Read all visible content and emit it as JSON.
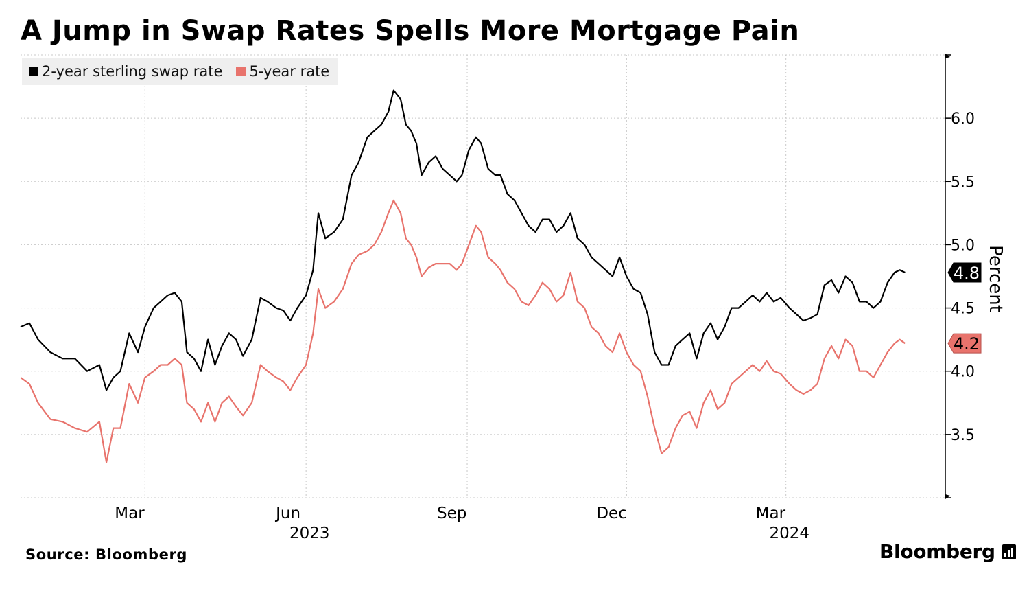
{
  "title": "A Jump in Swap Rates Spells More Mortgage Pain",
  "legend": [
    {
      "label": "2-year sterling swap rate",
      "color": "#000000"
    },
    {
      "label": "5-year rate",
      "color": "#e8736c"
    }
  ],
  "source": "Source: Bloomberg",
  "brand": "Bloomberg",
  "chart_data": {
    "type": "line",
    "ylabel": "Percent",
    "ylim": [
      3.0,
      6.5
    ],
    "yticks": [
      "3.5",
      "4.0",
      "4.5",
      "5.0",
      "5.5",
      "6.0"
    ],
    "xlim": [
      "2022-12-20",
      "2024-05-31"
    ],
    "xticks": [
      {
        "label": "Mar",
        "date": "2023-03-01"
      },
      {
        "label": "Jun",
        "date": "2023-06-01"
      },
      {
        "label": "Sep",
        "date": "2023-09-01"
      },
      {
        "label": "Dec",
        "date": "2023-12-01"
      },
      {
        "label": "Mar",
        "date": "2024-03-01"
      }
    ],
    "year_labels": [
      {
        "label": "2023",
        "date": "2023-06-03"
      },
      {
        "label": "2024",
        "date": "2024-03-03"
      }
    ],
    "grid": true,
    "legend_position": "top-left",
    "series": [
      {
        "name": "2-year sterling swap rate",
        "color": "#000000",
        "last_label": "4.8",
        "points": [
          [
            "2022-12-20",
            4.35
          ],
          [
            "2022-12-25",
            4.38
          ],
          [
            "2022-12-30",
            4.25
          ],
          [
            "2023-01-06",
            4.15
          ],
          [
            "2023-01-13",
            4.1
          ],
          [
            "2023-01-20",
            4.1
          ],
          [
            "2023-01-27",
            4.0
          ],
          [
            "2023-02-03",
            4.05
          ],
          [
            "2023-02-07",
            3.85
          ],
          [
            "2023-02-11",
            3.95
          ],
          [
            "2023-02-15",
            4.0
          ],
          [
            "2023-02-20",
            4.3
          ],
          [
            "2023-02-25",
            4.15
          ],
          [
            "2023-03-01",
            4.35
          ],
          [
            "2023-03-06",
            4.5
          ],
          [
            "2023-03-10",
            4.55
          ],
          [
            "2023-03-14",
            4.6
          ],
          [
            "2023-03-18",
            4.62
          ],
          [
            "2023-03-22",
            4.55
          ],
          [
            "2023-03-25",
            4.15
          ],
          [
            "2023-03-29",
            4.1
          ],
          [
            "2023-04-02",
            4.0
          ],
          [
            "2023-04-06",
            4.25
          ],
          [
            "2023-04-10",
            4.05
          ],
          [
            "2023-04-14",
            4.2
          ],
          [
            "2023-04-18",
            4.3
          ],
          [
            "2023-04-22",
            4.25
          ],
          [
            "2023-04-26",
            4.12
          ],
          [
            "2023-05-01",
            4.25
          ],
          [
            "2023-05-06",
            4.58
          ],
          [
            "2023-05-10",
            4.55
          ],
          [
            "2023-05-15",
            4.5
          ],
          [
            "2023-05-19",
            4.48
          ],
          [
            "2023-05-23",
            4.4
          ],
          [
            "2023-05-27",
            4.5
          ],
          [
            "2023-06-01",
            4.6
          ],
          [
            "2023-06-05",
            4.8
          ],
          [
            "2023-06-08",
            5.25
          ],
          [
            "2023-06-12",
            5.05
          ],
          [
            "2023-06-17",
            5.1
          ],
          [
            "2023-06-22",
            5.2
          ],
          [
            "2023-06-27",
            5.55
          ],
          [
            "2023-07-01",
            5.65
          ],
          [
            "2023-07-06",
            5.85
          ],
          [
            "2023-07-10",
            5.9
          ],
          [
            "2023-07-14",
            5.95
          ],
          [
            "2023-07-18",
            6.05
          ],
          [
            "2023-07-21",
            6.22
          ],
          [
            "2023-07-25",
            6.15
          ],
          [
            "2023-07-28",
            5.95
          ],
          [
            "2023-07-31",
            5.9
          ],
          [
            "2023-08-03",
            5.8
          ],
          [
            "2023-08-06",
            5.55
          ],
          [
            "2023-08-10",
            5.65
          ],
          [
            "2023-08-14",
            5.7
          ],
          [
            "2023-08-18",
            5.6
          ],
          [
            "2023-08-22",
            5.55
          ],
          [
            "2023-08-26",
            5.5
          ],
          [
            "2023-08-29",
            5.55
          ],
          [
            "2023-09-02",
            5.75
          ],
          [
            "2023-09-06",
            5.85
          ],
          [
            "2023-09-09",
            5.8
          ],
          [
            "2023-09-13",
            5.6
          ],
          [
            "2023-09-17",
            5.55
          ],
          [
            "2023-09-20",
            5.55
          ],
          [
            "2023-09-24",
            5.4
          ],
          [
            "2023-09-28",
            5.35
          ],
          [
            "2023-10-02",
            5.25
          ],
          [
            "2023-10-06",
            5.15
          ],
          [
            "2023-10-10",
            5.1
          ],
          [
            "2023-10-14",
            5.2
          ],
          [
            "2023-10-18",
            5.2
          ],
          [
            "2023-10-22",
            5.1
          ],
          [
            "2023-10-26",
            5.15
          ],
          [
            "2023-10-30",
            5.25
          ],
          [
            "2023-11-03",
            5.05
          ],
          [
            "2023-11-07",
            5.0
          ],
          [
            "2023-11-11",
            4.9
          ],
          [
            "2023-11-15",
            4.85
          ],
          [
            "2023-11-19",
            4.8
          ],
          [
            "2023-11-23",
            4.75
          ],
          [
            "2023-11-27",
            4.9
          ],
          [
            "2023-12-01",
            4.75
          ],
          [
            "2023-12-05",
            4.65
          ],
          [
            "2023-12-09",
            4.62
          ],
          [
            "2023-12-13",
            4.45
          ],
          [
            "2023-12-17",
            4.15
          ],
          [
            "2023-12-21",
            4.05
          ],
          [
            "2023-12-25",
            4.05
          ],
          [
            "2023-12-29",
            4.2
          ],
          [
            "2024-01-02",
            4.25
          ],
          [
            "2024-01-06",
            4.3
          ],
          [
            "2024-01-10",
            4.1
          ],
          [
            "2024-01-14",
            4.3
          ],
          [
            "2024-01-18",
            4.38
          ],
          [
            "2024-01-22",
            4.25
          ],
          [
            "2024-01-26",
            4.35
          ],
          [
            "2024-01-30",
            4.5
          ],
          [
            "2024-02-03",
            4.5
          ],
          [
            "2024-02-07",
            4.55
          ],
          [
            "2024-02-11",
            4.6
          ],
          [
            "2024-02-15",
            4.55
          ],
          [
            "2024-02-19",
            4.62
          ],
          [
            "2024-02-23",
            4.55
          ],
          [
            "2024-02-27",
            4.58
          ],
          [
            "2024-03-03",
            4.5
          ],
          [
            "2024-03-07",
            4.45
          ],
          [
            "2024-03-11",
            4.4
          ],
          [
            "2024-03-15",
            4.42
          ],
          [
            "2024-03-19",
            4.45
          ],
          [
            "2024-03-23",
            4.68
          ],
          [
            "2024-03-27",
            4.72
          ],
          [
            "2024-03-31",
            4.62
          ],
          [
            "2024-04-04",
            4.75
          ],
          [
            "2024-04-08",
            4.7
          ],
          [
            "2024-04-12",
            4.55
          ],
          [
            "2024-04-16",
            4.55
          ],
          [
            "2024-04-20",
            4.5
          ],
          [
            "2024-04-24",
            4.55
          ],
          [
            "2024-04-28",
            4.7
          ],
          [
            "2024-05-02",
            4.78
          ],
          [
            "2024-05-05",
            4.8
          ],
          [
            "2024-05-08",
            4.78
          ]
        ]
      },
      {
        "name": "5-year rate",
        "color": "#e8736c",
        "last_label": "4.2",
        "points": [
          [
            "2022-12-20",
            3.95
          ],
          [
            "2022-12-25",
            3.9
          ],
          [
            "2022-12-30",
            3.75
          ],
          [
            "2023-01-06",
            3.62
          ],
          [
            "2023-01-13",
            3.6
          ],
          [
            "2023-01-20",
            3.55
          ],
          [
            "2023-01-27",
            3.52
          ],
          [
            "2023-02-03",
            3.6
          ],
          [
            "2023-02-07",
            3.28
          ],
          [
            "2023-02-11",
            3.55
          ],
          [
            "2023-02-15",
            3.55
          ],
          [
            "2023-02-20",
            3.9
          ],
          [
            "2023-02-25",
            3.75
          ],
          [
            "2023-03-01",
            3.95
          ],
          [
            "2023-03-06",
            4.0
          ],
          [
            "2023-03-10",
            4.05
          ],
          [
            "2023-03-14",
            4.05
          ],
          [
            "2023-03-18",
            4.1
          ],
          [
            "2023-03-22",
            4.05
          ],
          [
            "2023-03-25",
            3.75
          ],
          [
            "2023-03-29",
            3.7
          ],
          [
            "2023-04-02",
            3.6
          ],
          [
            "2023-04-06",
            3.75
          ],
          [
            "2023-04-10",
            3.6
          ],
          [
            "2023-04-14",
            3.75
          ],
          [
            "2023-04-18",
            3.8
          ],
          [
            "2023-04-22",
            3.72
          ],
          [
            "2023-04-26",
            3.65
          ],
          [
            "2023-05-01",
            3.75
          ],
          [
            "2023-05-06",
            4.05
          ],
          [
            "2023-05-10",
            4.0
          ],
          [
            "2023-05-15",
            3.95
          ],
          [
            "2023-05-19",
            3.92
          ],
          [
            "2023-05-23",
            3.85
          ],
          [
            "2023-05-27",
            3.95
          ],
          [
            "2023-06-01",
            4.05
          ],
          [
            "2023-06-05",
            4.3
          ],
          [
            "2023-06-08",
            4.65
          ],
          [
            "2023-06-12",
            4.5
          ],
          [
            "2023-06-17",
            4.55
          ],
          [
            "2023-06-22",
            4.65
          ],
          [
            "2023-06-27",
            4.85
          ],
          [
            "2023-07-01",
            4.92
          ],
          [
            "2023-07-06",
            4.95
          ],
          [
            "2023-07-10",
            5.0
          ],
          [
            "2023-07-14",
            5.1
          ],
          [
            "2023-07-18",
            5.25
          ],
          [
            "2023-07-21",
            5.35
          ],
          [
            "2023-07-25",
            5.25
          ],
          [
            "2023-07-28",
            5.05
          ],
          [
            "2023-07-31",
            5.0
          ],
          [
            "2023-08-03",
            4.9
          ],
          [
            "2023-08-06",
            4.75
          ],
          [
            "2023-08-10",
            4.82
          ],
          [
            "2023-08-14",
            4.85
          ],
          [
            "2023-08-18",
            4.85
          ],
          [
            "2023-08-22",
            4.85
          ],
          [
            "2023-08-26",
            4.8
          ],
          [
            "2023-08-29",
            4.85
          ],
          [
            "2023-09-02",
            5.0
          ],
          [
            "2023-09-06",
            5.15
          ],
          [
            "2023-09-09",
            5.1
          ],
          [
            "2023-09-13",
            4.9
          ],
          [
            "2023-09-17",
            4.85
          ],
          [
            "2023-09-20",
            4.8
          ],
          [
            "2023-09-24",
            4.7
          ],
          [
            "2023-09-28",
            4.65
          ],
          [
            "2023-10-02",
            4.55
          ],
          [
            "2023-10-06",
            4.52
          ],
          [
            "2023-10-10",
            4.6
          ],
          [
            "2023-10-14",
            4.7
          ],
          [
            "2023-10-18",
            4.65
          ],
          [
            "2023-10-22",
            4.55
          ],
          [
            "2023-10-26",
            4.6
          ],
          [
            "2023-10-30",
            4.78
          ],
          [
            "2023-11-03",
            4.55
          ],
          [
            "2023-11-07",
            4.5
          ],
          [
            "2023-11-11",
            4.35
          ],
          [
            "2023-11-15",
            4.3
          ],
          [
            "2023-11-19",
            4.2
          ],
          [
            "2023-11-23",
            4.15
          ],
          [
            "2023-11-27",
            4.3
          ],
          [
            "2023-12-01",
            4.15
          ],
          [
            "2023-12-05",
            4.05
          ],
          [
            "2023-12-09",
            4.0
          ],
          [
            "2023-12-13",
            3.8
          ],
          [
            "2023-12-17",
            3.55
          ],
          [
            "2023-12-21",
            3.35
          ],
          [
            "2023-12-25",
            3.4
          ],
          [
            "2023-12-29",
            3.55
          ],
          [
            "2024-01-02",
            3.65
          ],
          [
            "2024-01-06",
            3.68
          ],
          [
            "2024-01-10",
            3.55
          ],
          [
            "2024-01-14",
            3.75
          ],
          [
            "2024-01-18",
            3.85
          ],
          [
            "2024-01-22",
            3.7
          ],
          [
            "2024-01-26",
            3.75
          ],
          [
            "2024-01-30",
            3.9
          ],
          [
            "2024-02-03",
            3.95
          ],
          [
            "2024-02-07",
            4.0
          ],
          [
            "2024-02-11",
            4.05
          ],
          [
            "2024-02-15",
            4.0
          ],
          [
            "2024-02-19",
            4.08
          ],
          [
            "2024-02-23",
            4.0
          ],
          [
            "2024-02-27",
            3.98
          ],
          [
            "2024-03-03",
            3.9
          ],
          [
            "2024-03-07",
            3.85
          ],
          [
            "2024-03-11",
            3.82
          ],
          [
            "2024-03-15",
            3.85
          ],
          [
            "2024-03-19",
            3.9
          ],
          [
            "2024-03-23",
            4.1
          ],
          [
            "2024-03-27",
            4.2
          ],
          [
            "2024-03-31",
            4.1
          ],
          [
            "2024-04-04",
            4.25
          ],
          [
            "2024-04-08",
            4.2
          ],
          [
            "2024-04-12",
            4.0
          ],
          [
            "2024-04-16",
            4.0
          ],
          [
            "2024-04-20",
            3.95
          ],
          [
            "2024-04-24",
            4.05
          ],
          [
            "2024-04-28",
            4.15
          ],
          [
            "2024-05-02",
            4.22
          ],
          [
            "2024-05-05",
            4.25
          ],
          [
            "2024-05-08",
            4.22
          ]
        ]
      }
    ]
  }
}
